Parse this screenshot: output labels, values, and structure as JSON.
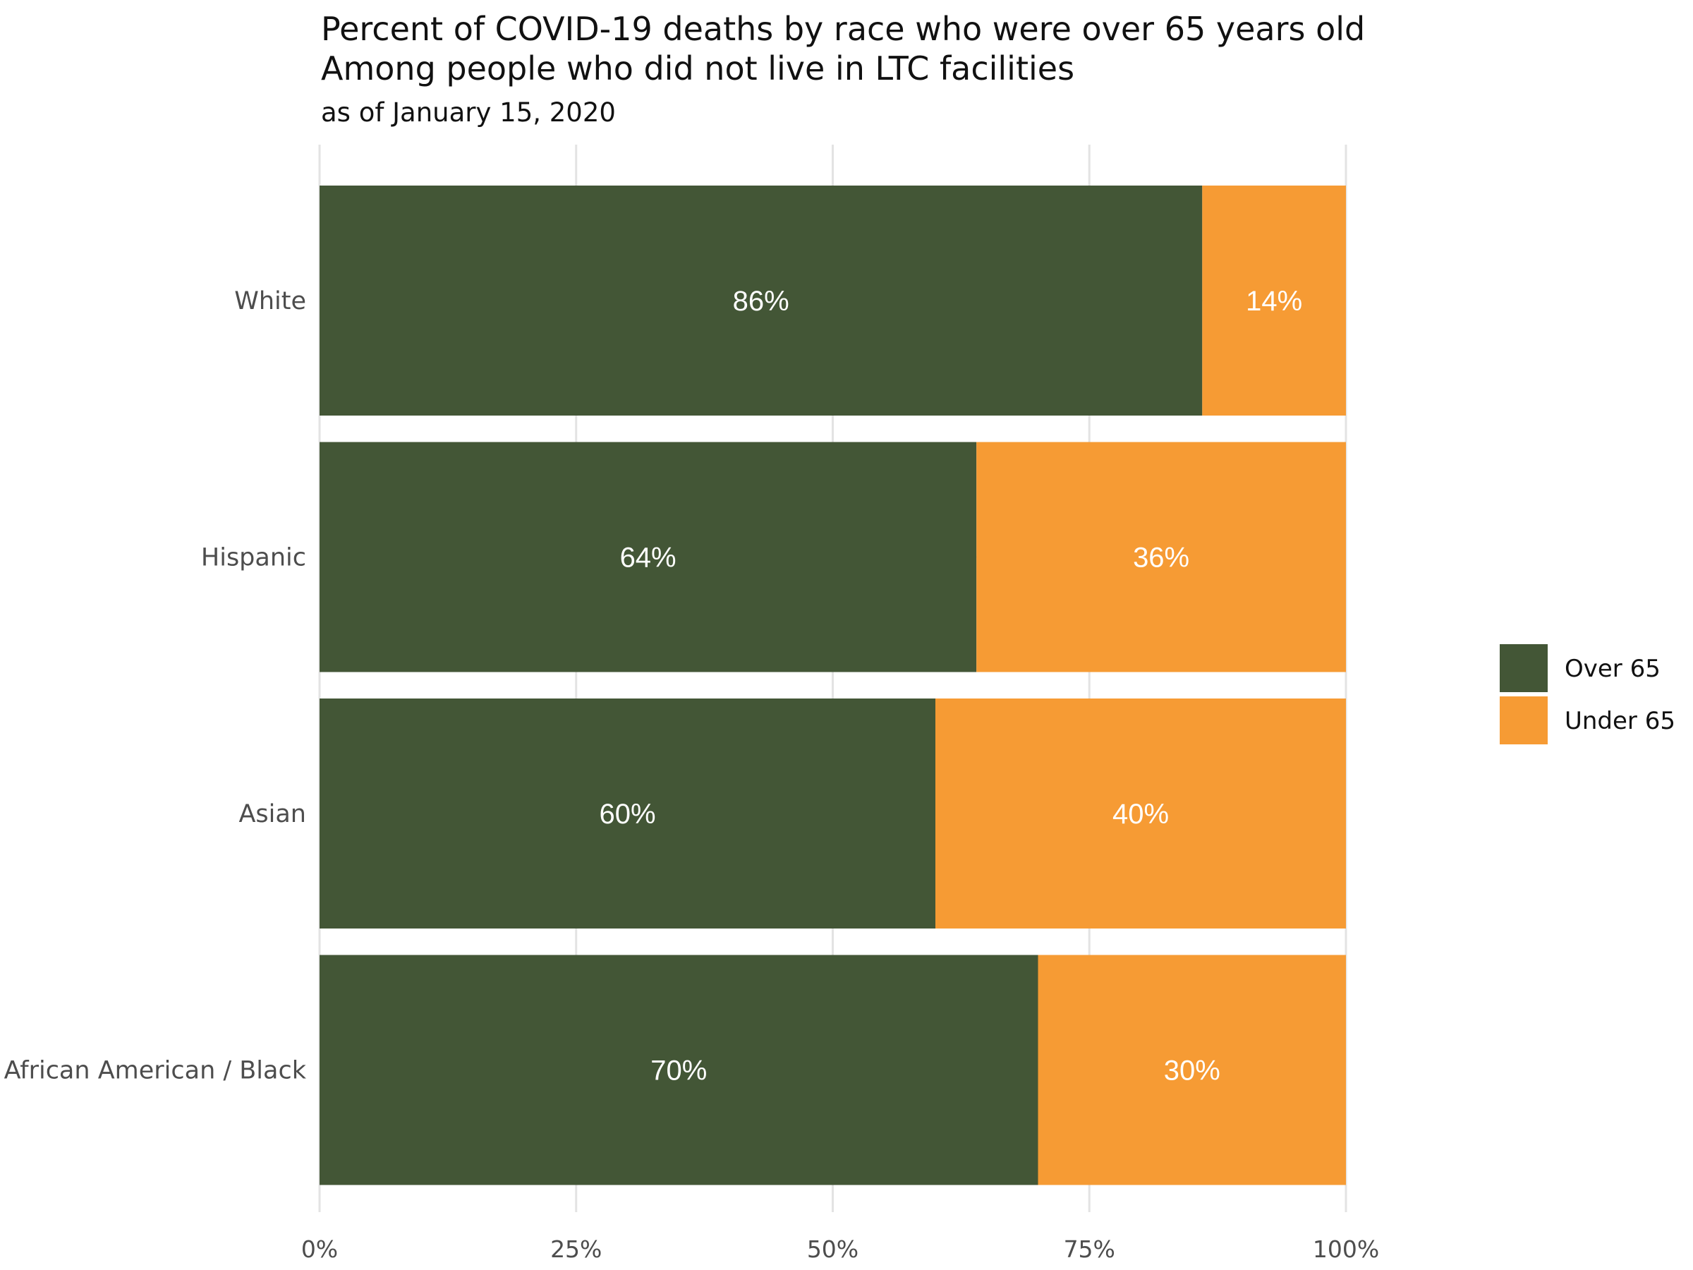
{
  "chart_data": {
    "type": "bar",
    "orientation": "horizontal",
    "stacked": true,
    "title_lines": [
      "Percent of COVID-19 deaths by race who were over 65 years old",
      "Among people who did not live in LTC facilities"
    ],
    "subtitle": "as of January 15, 2020",
    "categories": [
      "White",
      "Hispanic",
      "Asian",
      "African American / Black"
    ],
    "series": [
      {
        "name": "Over 65",
        "values": [
          86,
          64,
          60,
          70
        ],
        "color": "#435636"
      },
      {
        "name": "Under 65",
        "values": [
          14,
          36,
          40,
          30
        ],
        "color": "#F69B34"
      }
    ],
    "data_labels": [
      [
        "86%",
        "64%",
        "60%",
        "70%"
      ],
      [
        "14%",
        "36%",
        "40%",
        "30%"
      ]
    ],
    "xlim": [
      0,
      100
    ],
    "x_ticks": [
      0,
      25,
      50,
      75,
      100
    ],
    "x_tick_labels": [
      "0%",
      "25%",
      "50%",
      "75%",
      "100%"
    ],
    "grid": true,
    "legend_position": "right",
    "xlabel": "",
    "ylabel": ""
  },
  "colors": {
    "grid": "#e3e3e3",
    "axis_text": "#4d4d4d",
    "label_text": "#ffffff"
  }
}
